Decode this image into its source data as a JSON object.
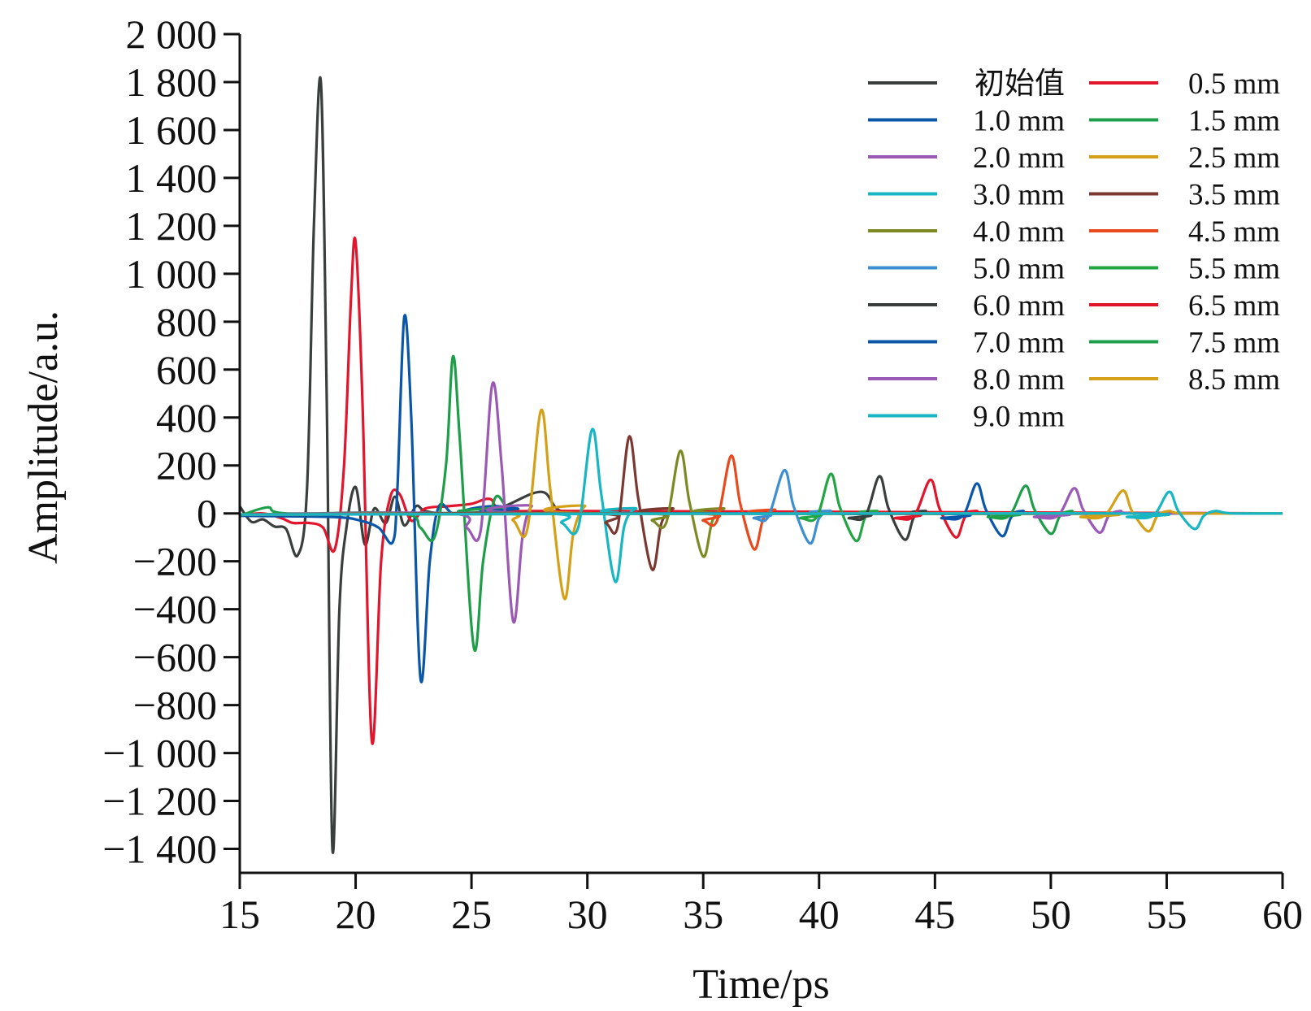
{
  "chart_data": {
    "type": "line",
    "xlabel": "Time/ps",
    "ylabel": "Amplitude/a.u.",
    "xlim": [
      15,
      60
    ],
    "ylim": [
      -1500,
      2000
    ],
    "xticks": [
      15,
      20,
      25,
      30,
      35,
      40,
      45,
      50,
      55,
      60
    ],
    "xtick_labels": [
      "15",
      "20",
      "25",
      "30",
      "35",
      "40",
      "45",
      "50",
      "55",
      "60"
    ],
    "yticks": [
      2000,
      1800,
      1600,
      1400,
      1200,
      1000,
      800,
      600,
      400,
      200,
      0,
      -200,
      -400,
      -600,
      -800,
      -1000,
      -1200,
      -1400
    ],
    "ytick_labels": [
      "2 000",
      "1 800",
      "1 600",
      "1 400",
      "1 200",
      "1 000",
      "800",
      "600",
      "400",
      "200",
      "0",
      "−200",
      "−400",
      "−600",
      "−800",
      "−1 000",
      "−1 200",
      "−1 400"
    ],
    "grid": false,
    "legend_position": "top-right",
    "series": [
      {
        "name": "初始值",
        "color": "#3a3f3d",
        "points": [
          [
            15,
            30
          ],
          [
            15.5,
            -35
          ],
          [
            16,
            -25
          ],
          [
            16.5,
            -55
          ],
          [
            17,
            -65
          ],
          [
            17.5,
            -175
          ],
          [
            17.9,
            100
          ],
          [
            18.2,
            1200
          ],
          [
            18.5,
            1800
          ],
          [
            18.75,
            500
          ],
          [
            19.0,
            -1400
          ],
          [
            19.3,
            -400
          ],
          [
            19.6,
            -60
          ],
          [
            20,
            110
          ],
          [
            20.4,
            -130
          ],
          [
            20.8,
            20
          ],
          [
            21.3,
            -40
          ],
          [
            21.7,
            70
          ],
          [
            22.1,
            -50
          ],
          [
            22.6,
            30
          ],
          [
            23.0,
            10
          ],
          [
            24,
            0
          ],
          [
            26,
            15
          ],
          [
            28,
            90
          ],
          [
            29,
            5
          ],
          [
            32,
            0
          ],
          [
            60,
            0
          ]
        ]
      },
      {
        "name": "0.5 mm",
        "color": "#e1152b",
        "points": [
          [
            15,
            -8
          ],
          [
            16,
            0
          ],
          [
            16.8,
            -20
          ],
          [
            17.3,
            -40
          ],
          [
            18,
            -40
          ],
          [
            18.6,
            -60
          ],
          [
            19.1,
            -150
          ],
          [
            19.5,
            200
          ],
          [
            19.8,
            900
          ],
          [
            20.0,
            1130
          ],
          [
            20.3,
            450
          ],
          [
            20.7,
            -950
          ],
          [
            21.1,
            -200
          ],
          [
            21.5,
            70
          ],
          [
            21.9,
            80
          ],
          [
            22.4,
            -30
          ],
          [
            23,
            20
          ],
          [
            24,
            30
          ],
          [
            25,
            40
          ],
          [
            25.8,
            60
          ],
          [
            26.5,
            10
          ],
          [
            30,
            10
          ],
          [
            60,
            0
          ]
        ]
      },
      {
        "name": "1.0 mm",
        "color": "#0a56a9",
        "points": [
          [
            15,
            -10
          ],
          [
            19,
            -15
          ],
          [
            20.2,
            -30
          ],
          [
            21.0,
            -60
          ],
          [
            21.6,
            -120
          ],
          [
            21.8,
            100
          ],
          [
            22.1,
            820
          ],
          [
            22.4,
            400
          ],
          [
            22.8,
            -690
          ],
          [
            23.2,
            -200
          ],
          [
            23.6,
            30
          ],
          [
            24.2,
            0
          ],
          [
            25,
            20
          ],
          [
            26,
            30
          ],
          [
            27,
            20
          ],
          [
            28,
            0
          ],
          [
            60,
            0
          ]
        ]
      },
      {
        "name": "1.5 mm",
        "color": "#1e9e49",
        "points": [
          [
            15,
            -10
          ],
          [
            16.2,
            25
          ],
          [
            17,
            0
          ],
          [
            22,
            0
          ],
          [
            22.8,
            -60
          ],
          [
            23.4,
            -100
          ],
          [
            23.9,
            200
          ],
          [
            24.2,
            655
          ],
          [
            24.5,
            300
          ],
          [
            25.1,
            -560
          ],
          [
            25.5,
            -200
          ],
          [
            26.0,
            60
          ],
          [
            26.5,
            30
          ],
          [
            27,
            0
          ],
          [
            60,
            0
          ]
        ]
      },
      {
        "name": "2.0 mm",
        "color": "#9b59b6",
        "points": [
          [
            15,
            -5
          ],
          [
            24,
            0
          ],
          [
            24.8,
            -60
          ],
          [
            25.4,
            -70
          ],
          [
            25.9,
            540
          ],
          [
            26.3,
            200
          ],
          [
            26.8,
            -450
          ],
          [
            27.2,
            -100
          ],
          [
            27.6,
            30
          ],
          [
            28.2,
            0
          ],
          [
            60,
            0
          ]
        ]
      },
      {
        "name": "2.5 mm",
        "color": "#d4a017",
        "points": [
          [
            15,
            -5
          ],
          [
            26,
            0
          ],
          [
            26.8,
            -30
          ],
          [
            27.4,
            -70
          ],
          [
            28.0,
            430
          ],
          [
            28.4,
            100
          ],
          [
            29.0,
            -355
          ],
          [
            29.4,
            -80
          ],
          [
            29.9,
            30
          ],
          [
            30.5,
            0
          ],
          [
            60,
            0
          ]
        ]
      },
      {
        "name": "3.0 mm",
        "color": "#17b6c2",
        "points": [
          [
            15,
            -5
          ],
          [
            28,
            0
          ],
          [
            28.9,
            -40
          ],
          [
            29.6,
            -60
          ],
          [
            30.2,
            350
          ],
          [
            30.6,
            80
          ],
          [
            31.2,
            -285
          ],
          [
            31.6,
            -50
          ],
          [
            32.1,
            20
          ],
          [
            32.8,
            0
          ],
          [
            60,
            0
          ]
        ]
      },
      {
        "name": "3.5 mm",
        "color": "#7a3830",
        "points": [
          [
            15,
            -5
          ],
          [
            30,
            0
          ],
          [
            30.8,
            -40
          ],
          [
            31.3,
            -60
          ],
          [
            31.8,
            320
          ],
          [
            32.2,
            60
          ],
          [
            32.8,
            -235
          ],
          [
            33.2,
            -40
          ],
          [
            33.7,
            20
          ],
          [
            34.3,
            0
          ],
          [
            60,
            0
          ]
        ]
      },
      {
        "name": "4.0 mm",
        "color": "#7d8a24",
        "points": [
          [
            15,
            -5
          ],
          [
            32,
            0
          ],
          [
            32.8,
            -30
          ],
          [
            33.4,
            -40
          ],
          [
            34.0,
            260
          ],
          [
            34.4,
            50
          ],
          [
            35.0,
            -180
          ],
          [
            35.4,
            -30
          ],
          [
            35.9,
            20
          ],
          [
            36.5,
            0
          ],
          [
            60,
            0
          ]
        ]
      },
      {
        "name": "4.5 mm",
        "color": "#e8491d",
        "points": [
          [
            15,
            -5
          ],
          [
            34,
            0
          ],
          [
            35.0,
            -30
          ],
          [
            35.6,
            -30
          ],
          [
            36.2,
            240
          ],
          [
            36.6,
            40
          ],
          [
            37.2,
            -150
          ],
          [
            37.6,
            -20
          ],
          [
            38.1,
            15
          ],
          [
            38.7,
            0
          ],
          [
            60,
            0
          ]
        ]
      },
      {
        "name": "5.0 mm",
        "color": "#3d8fd1",
        "points": [
          [
            15,
            -5
          ],
          [
            36,
            0
          ],
          [
            37.2,
            -20
          ],
          [
            37.8,
            -15
          ],
          [
            38.5,
            180
          ],
          [
            38.9,
            30
          ],
          [
            39.6,
            -125
          ],
          [
            40.0,
            -20
          ],
          [
            40.5,
            10
          ],
          [
            41.2,
            0
          ],
          [
            60,
            0
          ]
        ]
      },
      {
        "name": "5.5 mm",
        "color": "#22a542",
        "points": [
          [
            15,
            -5
          ],
          [
            38,
            0
          ],
          [
            39.2,
            -20
          ],
          [
            39.9,
            -15
          ],
          [
            40.5,
            165
          ],
          [
            40.9,
            25
          ],
          [
            41.6,
            -115
          ],
          [
            42.0,
            -15
          ],
          [
            42.5,
            10
          ],
          [
            43.2,
            0
          ],
          [
            60,
            0
          ]
        ]
      },
      {
        "name": "6.0 mm",
        "color": "#3a3f3d",
        "points": [
          [
            15,
            -5
          ],
          [
            40,
            0
          ],
          [
            41.3,
            -20
          ],
          [
            42.0,
            -10
          ],
          [
            42.6,
            155
          ],
          [
            43.0,
            20
          ],
          [
            43.7,
            -110
          ],
          [
            44.1,
            -15
          ],
          [
            44.6,
            10
          ],
          [
            45.3,
            0
          ],
          [
            60,
            0
          ]
        ]
      },
      {
        "name": "6.5 mm",
        "color": "#e1152b",
        "points": [
          [
            15,
            -5
          ],
          [
            42,
            0
          ],
          [
            43.3,
            -20
          ],
          [
            44.1,
            -10
          ],
          [
            44.8,
            140
          ],
          [
            45.2,
            20
          ],
          [
            45.9,
            -100
          ],
          [
            46.3,
            -15
          ],
          [
            46.8,
            10
          ],
          [
            47.5,
            0
          ],
          [
            60,
            0
          ]
        ]
      },
      {
        "name": "7.0 mm",
        "color": "#0a56a9",
        "points": [
          [
            15,
            -5
          ],
          [
            44,
            0
          ],
          [
            45.3,
            -20
          ],
          [
            46.2,
            -10
          ],
          [
            46.8,
            125
          ],
          [
            47.2,
            15
          ],
          [
            47.9,
            -95
          ],
          [
            48.3,
            -15
          ],
          [
            48.8,
            10
          ],
          [
            49.5,
            0
          ],
          [
            60,
            0
          ]
        ]
      },
      {
        "name": "7.5 mm",
        "color": "#1e9e49",
        "points": [
          [
            15,
            -5
          ],
          [
            46,
            0
          ],
          [
            47.3,
            -15
          ],
          [
            48.2,
            -10
          ],
          [
            48.9,
            115
          ],
          [
            49.3,
            15
          ],
          [
            50.0,
            -85
          ],
          [
            50.4,
            -10
          ],
          [
            50.9,
            10
          ],
          [
            51.6,
            0
          ],
          [
            60,
            0
          ]
        ]
      },
      {
        "name": "8.0 mm",
        "color": "#9b59b6",
        "points": [
          [
            15,
            -5
          ],
          [
            48,
            0
          ],
          [
            49.3,
            -15
          ],
          [
            50.3,
            -10
          ],
          [
            51.0,
            105
          ],
          [
            51.4,
            15
          ],
          [
            52.1,
            -80
          ],
          [
            52.5,
            -10
          ],
          [
            53.0,
            10
          ],
          [
            53.7,
            0
          ],
          [
            60,
            0
          ]
        ]
      },
      {
        "name": "8.5 mm",
        "color": "#d4a017",
        "points": [
          [
            15,
            -5
          ],
          [
            50,
            0
          ],
          [
            51.3,
            -15
          ],
          [
            52.3,
            -10
          ],
          [
            53.1,
            95
          ],
          [
            53.5,
            10
          ],
          [
            54.2,
            -75
          ],
          [
            54.6,
            -10
          ],
          [
            55.1,
            10
          ],
          [
            55.8,
            0
          ],
          [
            60,
            0
          ]
        ]
      },
      {
        "name": "9.0 mm",
        "color": "#17b6c2",
        "points": [
          [
            15,
            -5
          ],
          [
            52,
            0
          ],
          [
            53.3,
            -15
          ],
          [
            54.4,
            -10
          ],
          [
            55.1,
            90
          ],
          [
            55.5,
            10
          ],
          [
            56.2,
            -65
          ],
          [
            56.6,
            -10
          ],
          [
            57.1,
            10
          ],
          [
            57.8,
            0
          ],
          [
            60,
            0
          ]
        ]
      }
    ]
  }
}
